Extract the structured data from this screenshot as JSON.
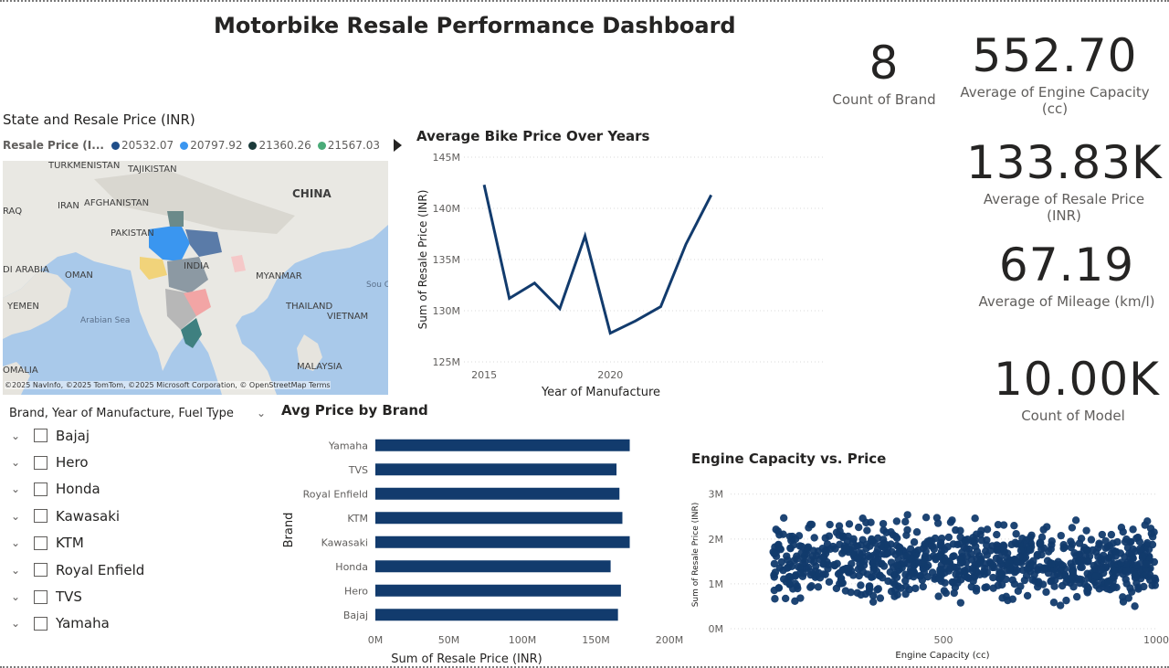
{
  "dashboard": {
    "title": "Motorbike Resale Performance Dashboard"
  },
  "kpis": {
    "brand_count": {
      "value": "8",
      "label": "Count of Brand"
    },
    "engine_capacity": {
      "value": "552.70",
      "label": "Average of Engine Capacity (cc)"
    },
    "resale_price": {
      "value": "133.83K",
      "label": "Average of Resale Price (INR)"
    },
    "mileage": {
      "value": "67.19",
      "label": "Average of Mileage (km/l)"
    },
    "model_count": {
      "value": "10.00K",
      "label": "Count of Model"
    }
  },
  "map": {
    "title": "State and Resale Price (INR)",
    "legend_title": "Resale Price (I...",
    "legend_items": [
      {
        "label": "20532.07",
        "color": "#1f4e89"
      },
      {
        "label": "20797.92",
        "color": "#3a96f0"
      },
      {
        "label": "21360.26",
        "color": "#1b3a3a"
      },
      {
        "label": "21567.03",
        "color": "#4aab78"
      }
    ],
    "place_labels": [
      "TURKMENISTAN",
      "TAJIKISTAN",
      "CHINA",
      "IRAN",
      "AFGHANISTAN",
      "RAQ",
      "PAKISTAN",
      "INDIA",
      "DI ARABIA",
      "OMAN",
      "MYANMAR",
      "THAILAND",
      "YEMEN",
      "Arabian Sea",
      "VIETNAM",
      "Sou Chi Se",
      "MALAYSIA",
      "OMALIA"
    ],
    "attribution": "©2025 NavInfo, ©2025 TomTom, ©2025 Microsoft Corporation, © OpenStreetMap  Terms"
  },
  "slicer": {
    "header": "Brand, Year of Manufacture, Fuel Type",
    "items": [
      "Bajaj",
      "Hero",
      "Honda",
      "Kawasaki",
      "KTM",
      "Royal Enfield",
      "TVS",
      "Yamaha"
    ]
  },
  "chart_data": [
    {
      "type": "line",
      "title": "Average Bike Price Over Years",
      "xlabel": "Year of Manufacture",
      "ylabel": "Sum of Resale Price (INR)",
      "x": [
        2015,
        2016,
        2017,
        2018,
        2019,
        2020,
        2021,
        2022,
        2023,
        2024
      ],
      "values": [
        142.3,
        131.2,
        132.7,
        130.2,
        137.3,
        127.8,
        129.0,
        130.4,
        136.5,
        141.3
      ],
      "xticks": [
        {
          "v": 2015,
          "label": "2015"
        },
        {
          "v": 2020,
          "label": "2020"
        }
      ],
      "yticks": [
        {
          "v": 125,
          "label": "125M"
        },
        {
          "v": 130,
          "label": "130M"
        },
        {
          "v": 135,
          "label": "135M"
        },
        {
          "v": 140,
          "label": "140M"
        },
        {
          "v": 145,
          "label": "145M"
        }
      ],
      "ylim": [
        125,
        145
      ],
      "xlim": [
        2014.2,
        2028.5
      ],
      "color": "#123b6d"
    },
    {
      "type": "bar",
      "orientation": "horizontal",
      "title": "Avg Price by Brand",
      "xlabel": "Sum of Resale Price (INR)",
      "ylabel": "Brand",
      "categories": [
        "Yamaha",
        "TVS",
        "Royal Enfield",
        "KTM",
        "Kawasaki",
        "Honda",
        "Hero",
        "Bajaj"
      ],
      "values": [
        173,
        164,
        166,
        168,
        173,
        160,
        167,
        165
      ],
      "xticks": [
        {
          "v": 0,
          "label": "0M"
        },
        {
          "v": 50,
          "label": "50M"
        },
        {
          "v": 100,
          "label": "100M"
        },
        {
          "v": 150,
          "label": "150M"
        },
        {
          "v": 200,
          "label": "200M"
        }
      ],
      "xlim": [
        0,
        200
      ],
      "color": "#123b6d"
    },
    {
      "type": "scatter",
      "title": "Engine Capacity vs. Price",
      "xlabel": "Engine Capacity (cc)",
      "ylabel": "Sum of Resale Price (INR)",
      "xticks": [
        {
          "v": 500,
          "label": "500"
        },
        {
          "v": 1000,
          "label": "1000"
        }
      ],
      "yticks": [
        {
          "v": 0,
          "label": "0M"
        },
        {
          "v": 1,
          "label": "1M"
        },
        {
          "v": 2,
          "label": "2M"
        },
        {
          "v": 3,
          "label": "3M"
        }
      ],
      "xlim": [
        0,
        1000
      ],
      "ylim": [
        0,
        3.3
      ],
      "x_range_of_points": [
        100,
        1000
      ],
      "y_range_of_points": [
        0.2,
        3.2
      ],
      "color": "#123b6d"
    }
  ]
}
